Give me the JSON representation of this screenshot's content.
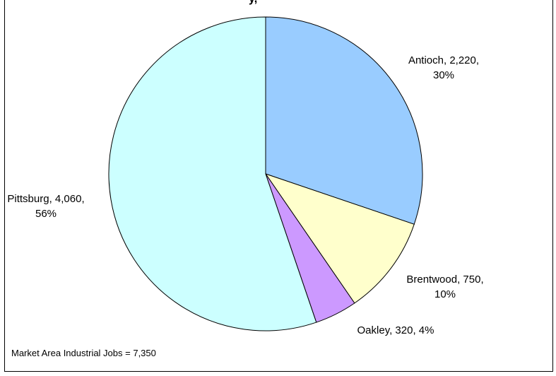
{
  "chart_data": {
    "type": "pie",
    "title_fragment": "y,",
    "slices": [
      {
        "name": "Antioch",
        "value": 2220,
        "percent": 30,
        "color": "#99CCFF",
        "label_line1": "Antioch, 2,220,",
        "label_line2": "30%"
      },
      {
        "name": "Brentwood",
        "value": 750,
        "percent": 10,
        "color": "#FFFFCC",
        "label_line1": "Brentwood, 750,",
        "label_line2": "10%"
      },
      {
        "name": "Oakley",
        "value": 320,
        "percent": 4,
        "color": "#CC99FF",
        "label_line1": "Oakley, 320, 4%",
        "label_line2": ""
      },
      {
        "name": "Pittsburg",
        "value": 4060,
        "percent": 56,
        "color": "#CCFFFF",
        "label_line1": "Pittsburg, 4,060,",
        "label_line2": "56%"
      }
    ],
    "total": 7350,
    "start": "12 o'clock",
    "direction": "clockwise",
    "footnote": "Market Area Industrial Jobs = 7,350"
  }
}
